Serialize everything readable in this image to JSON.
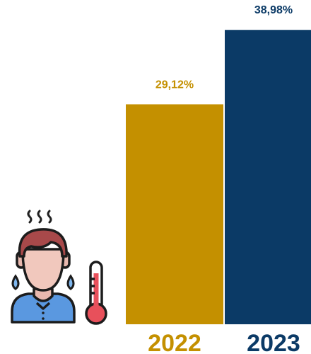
{
  "chart_data": {
    "type": "bar",
    "title": "",
    "xlabel": "",
    "ylabel": "",
    "categories": [
      "2022",
      "2023"
    ],
    "values": [
      29.12,
      38.98
    ],
    "value_labels": [
      "29,12%",
      "38,98%"
    ],
    "ylim": [
      0,
      42
    ],
    "grid": false,
    "legend": "none",
    "colors": [
      "#c49000",
      "#0b3a66"
    ]
  },
  "illustration": {
    "icons": [
      "person-icon",
      "heat-waves-icon",
      "sweat-drop-icon",
      "thermometer-icon"
    ]
  }
}
